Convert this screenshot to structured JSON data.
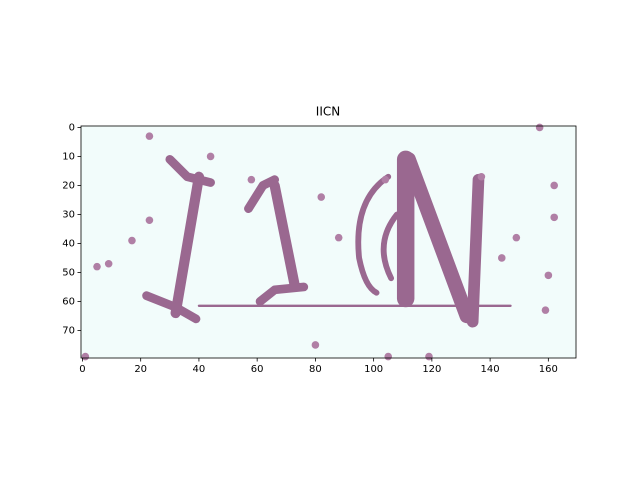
{
  "chart_data": {
    "type": "image",
    "title": "IICN",
    "xlim": [
      -0.5,
      169.5
    ],
    "ylim": [
      79.5,
      -0.5
    ],
    "xticks": [
      0,
      20,
      40,
      60,
      80,
      100,
      120,
      140,
      160
    ],
    "yticks": [
      0,
      10,
      20,
      30,
      40,
      50,
      60,
      70
    ]
  }
}
